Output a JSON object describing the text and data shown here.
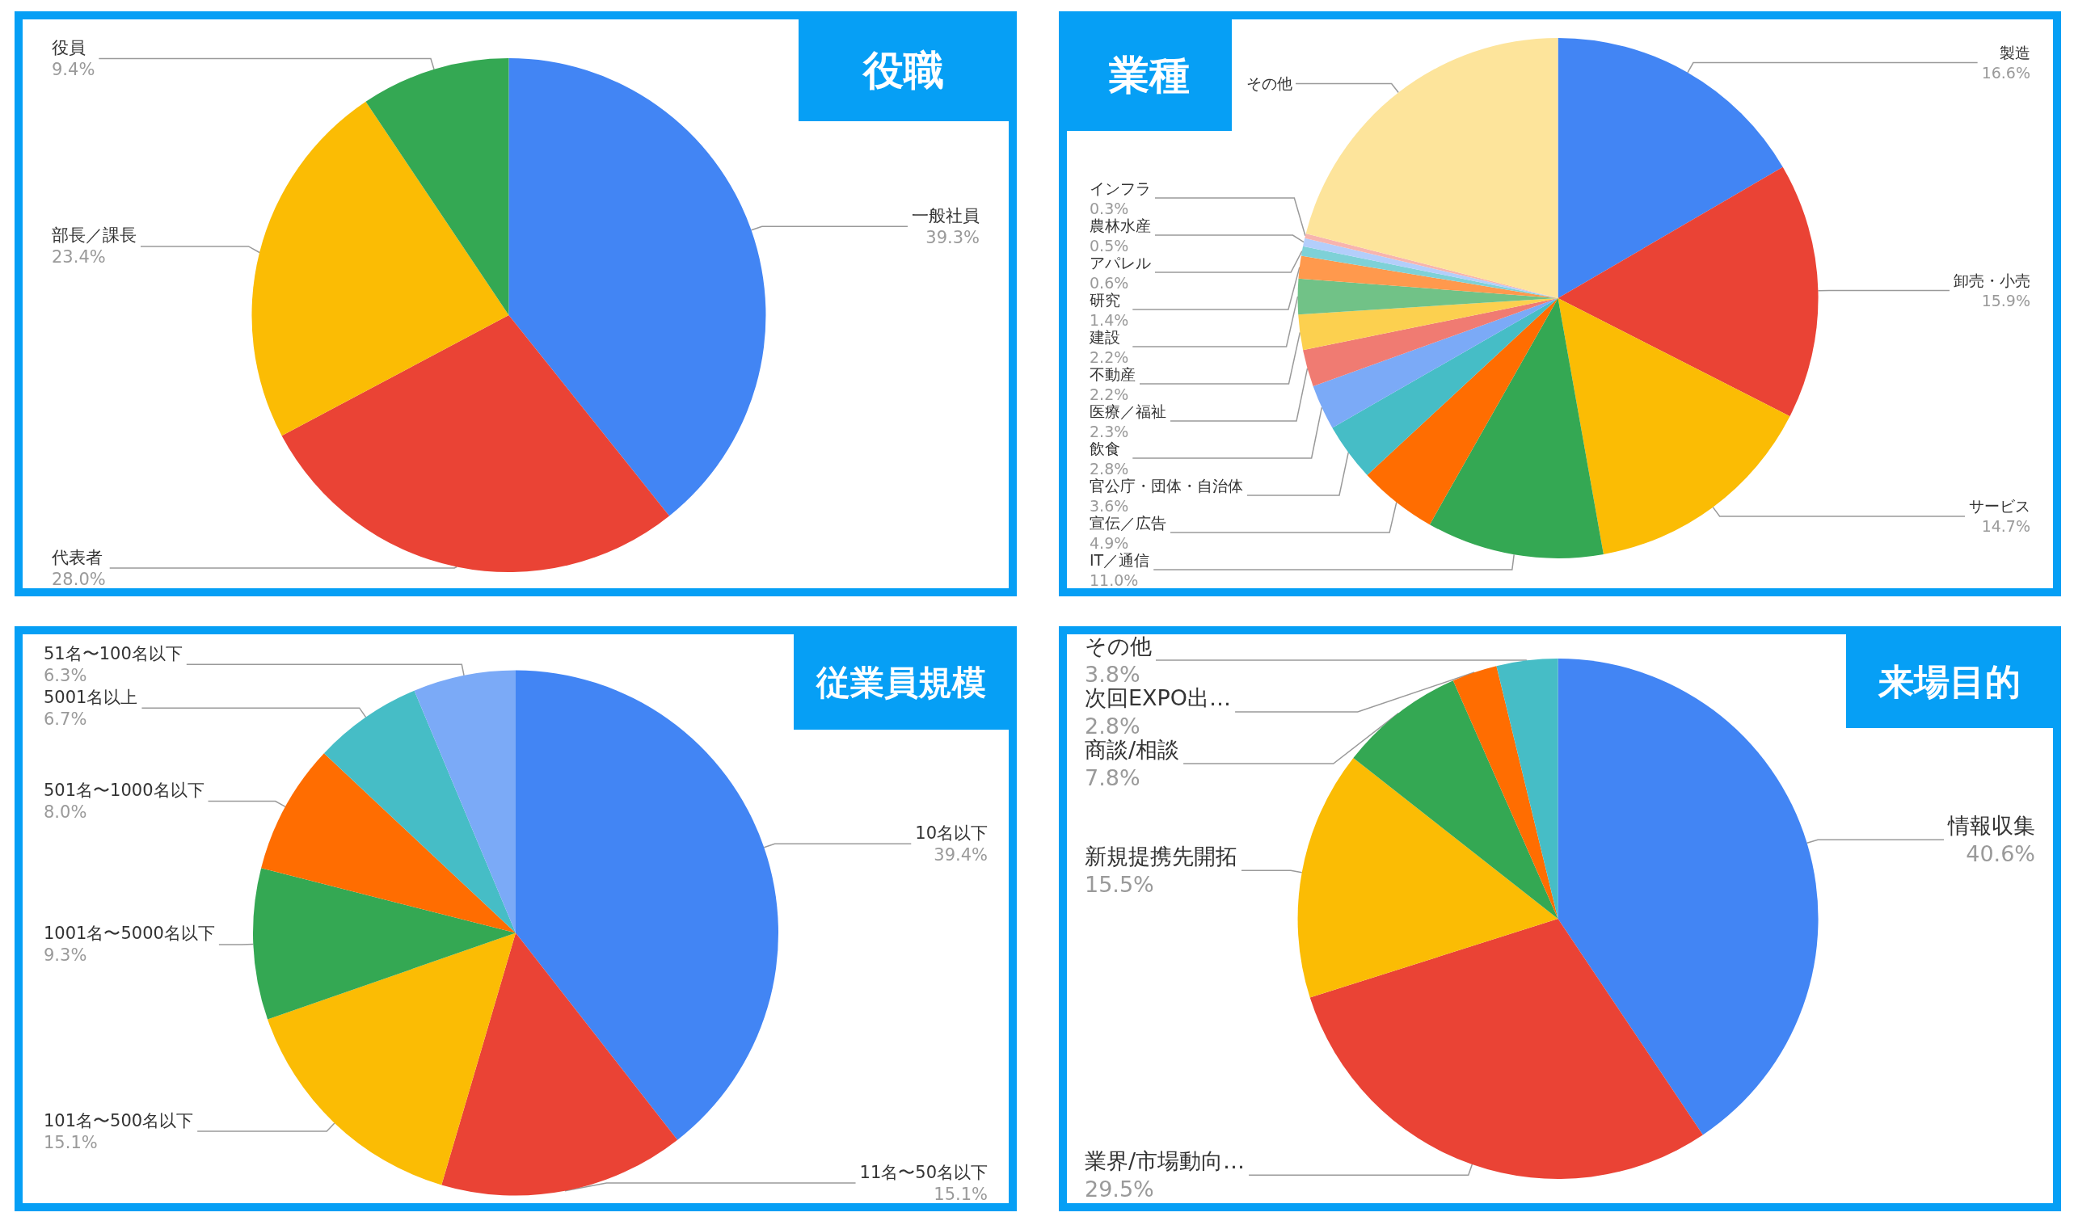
{
  "chart_data": [
    {
      "type": "pie",
      "title": "役職",
      "categories": [
        "一般社員",
        "代表者",
        "部長／課長",
        "役員"
      ],
      "values": [
        39.3,
        28.0,
        23.4,
        9.4
      ],
      "value_labels": [
        "39.3%",
        "28.0%",
        "23.4%",
        "9.4%"
      ],
      "colors": [
        "#4285f4",
        "#ea4335",
        "#fbbc04",
        "#34a853"
      ]
    },
    {
      "type": "pie",
      "title": "業種",
      "categories": [
        "製造",
        "卸売・小売",
        "サービス",
        "IT／通信",
        "宣伝／広告",
        "官公庁・団体・自治体",
        "飲食",
        "医療／福祉",
        "不動産",
        "建設",
        "研究",
        "アパレル",
        "農林水産",
        "インフラ",
        "その他"
      ],
      "values": [
        16.6,
        15.9,
        14.7,
        11.0,
        4.9,
        3.6,
        2.8,
        2.3,
        2.2,
        2.2,
        1.4,
        0.6,
        0.5,
        0.3,
        21.0
      ],
      "value_labels": [
        "16.6%",
        "15.9%",
        "14.7%",
        "11.0%",
        "4.9%",
        "3.6%",
        "2.8%",
        "2.3%",
        "2.2%",
        "2.2%",
        "1.4%",
        "0.6%",
        "0.5%",
        "0.3%",
        null
      ],
      "colors": [
        "#4285f4",
        "#ea4335",
        "#fbbc04",
        "#34a853",
        "#ff6d01",
        "#46bdc6",
        "#7baaf7",
        "#f07b72",
        "#fcd04f",
        "#71c287",
        "#ff994d",
        "#7ed1d7",
        "#b3cefb",
        "#f7b4ae",
        "#fde49b"
      ]
    },
    {
      "type": "pie",
      "title": "従業員規模",
      "categories": [
        "10名以下",
        "11名〜50名以下",
        "101名〜500名以下",
        "1001名〜5000名以下",
        "501名〜1000名以下",
        "5001名以上",
        "51名〜100名以下"
      ],
      "values": [
        39.4,
        15.1,
        15.1,
        9.3,
        8.0,
        6.7,
        6.3
      ],
      "value_labels": [
        "39.4%",
        "15.1%",
        "15.1%",
        "9.3%",
        "8.0%",
        "6.7%",
        "6.3%"
      ],
      "colors": [
        "#4285f4",
        "#ea4335",
        "#fbbc04",
        "#34a853",
        "#ff6d01",
        "#46bdc6",
        "#7baaf7"
      ]
    },
    {
      "type": "pie",
      "title": "来場目的",
      "categories": [
        "情報収集",
        "業界/市場動向…",
        "新規提携先開拓",
        "商談/相談",
        "次回EXPO出…",
        "その他"
      ],
      "values": [
        40.6,
        29.5,
        15.5,
        7.8,
        2.8,
        3.8
      ],
      "value_labels": [
        "40.6%",
        "29.5%",
        "15.5%",
        "7.8%",
        "2.8%",
        "3.8%"
      ],
      "colors": [
        "#4285f4",
        "#ea4335",
        "#fbbc04",
        "#34a853",
        "#ff6d01",
        "#46bdc6"
      ]
    }
  ]
}
